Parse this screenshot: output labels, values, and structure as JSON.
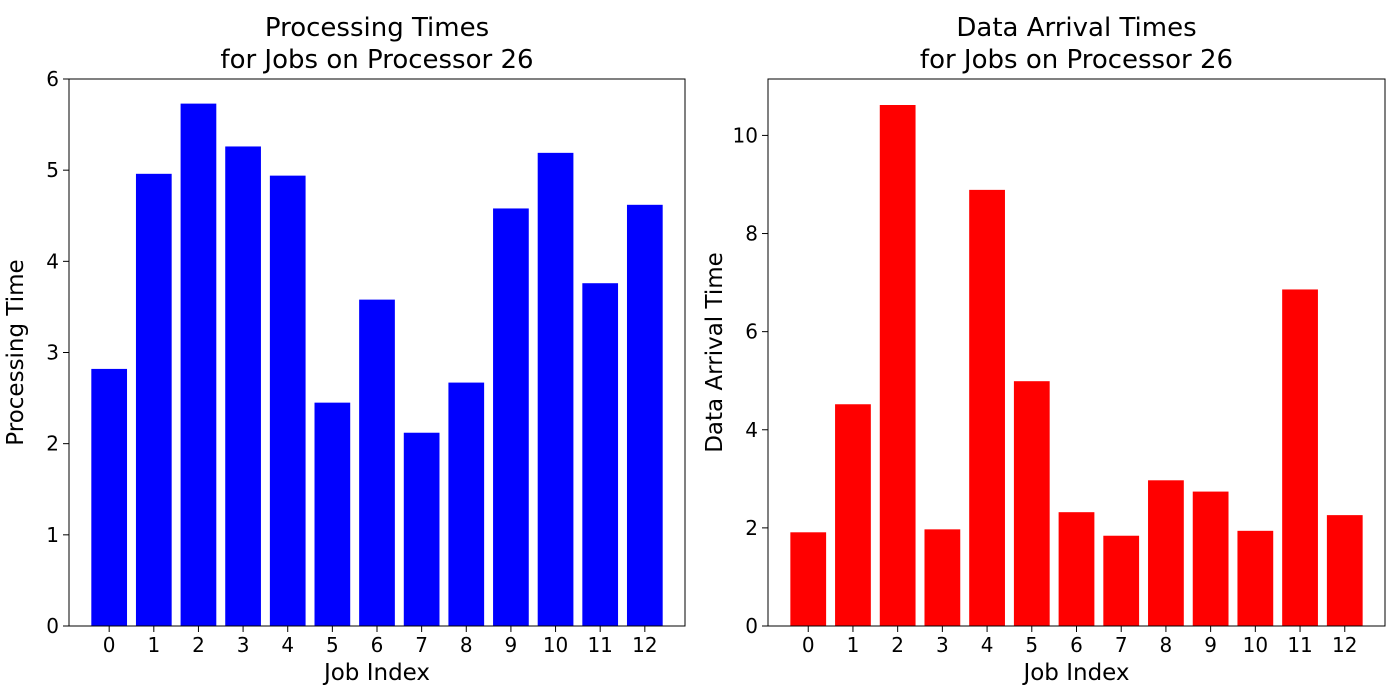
{
  "chart_data": [
    {
      "type": "bar",
      "title": [
        "Processing Times",
        "for Jobs on Processor 26"
      ],
      "xlabel": "Job Index",
      "ylabel": "Processing Time",
      "categories": [
        "0",
        "1",
        "2",
        "3",
        "4",
        "5",
        "6",
        "7",
        "8",
        "9",
        "10",
        "11",
        "12"
      ],
      "values": [
        2.82,
        4.96,
        5.73,
        5.26,
        4.94,
        2.45,
        3.58,
        2.12,
        2.67,
        4.58,
        5.19,
        3.76,
        4.62
      ],
      "ylim": [
        0,
        6
      ],
      "yticks": [
        0,
        1,
        2,
        3,
        4,
        5,
        6
      ],
      "bar_color": "#0000ff",
      "grid": false,
      "legend": "none"
    },
    {
      "type": "bar",
      "title": [
        "Data Arrival Times",
        "for Jobs on Processor 26"
      ],
      "xlabel": "Job Index",
      "ylabel": "Data Arrival Time",
      "categories": [
        "0",
        "1",
        "2",
        "3",
        "4",
        "5",
        "6",
        "7",
        "8",
        "9",
        "10",
        "11",
        "12"
      ],
      "values": [
        1.91,
        4.52,
        10.62,
        1.97,
        8.89,
        4.99,
        2.32,
        1.84,
        2.97,
        2.74,
        1.94,
        6.86,
        2.26
      ],
      "ylim": [
        0,
        11.15
      ],
      "yticks": [
        0,
        2,
        4,
        6,
        8,
        10
      ],
      "bar_color": "#ff0000",
      "grid": false,
      "legend": "none"
    }
  ]
}
